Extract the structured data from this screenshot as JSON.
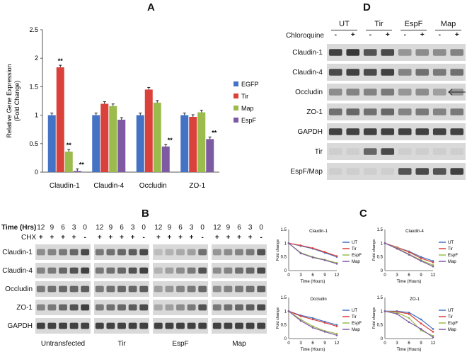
{
  "panel_a": {
    "label": "A",
    "chart_data": {
      "type": "bar",
      "ylabel": "Relative Gene Expression\n(Fold Change)",
      "ylim": [
        0,
        2.5
      ],
      "yticks": [
        "0",
        "0.5",
        "1",
        "1.5",
        "2",
        "2.5"
      ],
      "categories": [
        "Claudin-1",
        "Claudin-4",
        "Occludin",
        "ZO-1"
      ],
      "series": [
        {
          "name": "EGFP",
          "color": "#4472c4",
          "values": [
            1.0,
            1.0,
            1.0,
            1.0
          ]
        },
        {
          "name": "Tir",
          "color": "#d9413a",
          "values": [
            1.84,
            1.2,
            1.45,
            0.97
          ]
        },
        {
          "name": "Map",
          "color": "#9bbb4d",
          "values": [
            0.36,
            1.16,
            1.22,
            1.05
          ]
        },
        {
          "name": "EspF",
          "color": "#7e5aa2",
          "values": [
            0.02,
            0.92,
            0.45,
            0.58
          ]
        }
      ],
      "significance": [
        {
          "category": 0,
          "series": 1,
          "text": "**"
        },
        {
          "category": 0,
          "series": 2,
          "text": "**"
        },
        {
          "category": 0,
          "series": 3,
          "text": "**"
        },
        {
          "category": 2,
          "series": 3,
          "text": "**"
        },
        {
          "category": 3,
          "series": 3,
          "text": "**"
        }
      ]
    }
  },
  "panel_d": {
    "label": "D",
    "groups": [
      "UT",
      "Tir",
      "EspF",
      "Map"
    ],
    "treatment_label": "Chloroquine",
    "treatment_signs": [
      "-",
      "+",
      "-",
      "+",
      "-",
      "+",
      "-",
      "+"
    ],
    "rows": [
      "Claudin-1",
      "Claudin-4",
      "Occludin",
      "ZO-1",
      "GAPDH",
      "Tir",
      "EspF/Map"
    ]
  },
  "panel_b": {
    "label": "B",
    "time_label": "Time (Hrs)",
    "time_values": [
      "12",
      "9",
      "6",
      "3",
      "0"
    ],
    "treatment_label": "CHX",
    "treatment_signs": [
      "+",
      "+",
      "+",
      "+",
      "-"
    ],
    "rows": [
      "Claudin-1",
      "Claudin-4",
      "Occludin",
      "ZO-1",
      "GAPDH"
    ],
    "groups": [
      "Untransfected",
      "Tir",
      "EspF",
      "Map"
    ]
  },
  "panel_c": {
    "label": "C",
    "chart_data": [
      {
        "type": "line",
        "title": "Claudin-1",
        "xlabel": "Time (Hours)",
        "ylabel": "Fold change",
        "x": [
          0,
          3,
          6,
          9,
          12
        ],
        "ylim": [
          0,
          1.5
        ],
        "xticks": [
          "0",
          "3",
          "6",
          "9",
          "12"
        ],
        "yticks": [
          "0",
          "0.5",
          "1",
          "1.5"
        ],
        "series": [
          {
            "name": "UT",
            "color": "#4472c4",
            "values": [
              1.0,
              0.9,
              0.8,
              0.65,
              0.5
            ]
          },
          {
            "name": "Tir",
            "color": "#d9413a",
            "values": [
              1.0,
              0.92,
              0.82,
              0.68,
              0.53
            ]
          },
          {
            "name": "EspF",
            "color": "#9bbb4d",
            "values": [
              1.0,
              0.65,
              0.5,
              0.4,
              0.28
            ]
          },
          {
            "name": "Map",
            "color": "#7e5aa2",
            "values": [
              1.0,
              0.63,
              0.48,
              0.38,
              0.25
            ]
          }
        ]
      },
      {
        "type": "line",
        "title": "Claudin-4",
        "xlabel": "Time (Hours)",
        "ylabel": "Fold change",
        "x": [
          0,
          3,
          6,
          9,
          12
        ],
        "ylim": [
          0,
          1.5
        ],
        "xticks": [
          "0",
          "3",
          "6",
          "9",
          "12"
        ],
        "yticks": [
          "0",
          "0.5",
          "1",
          "1.5"
        ],
        "series": [
          {
            "name": "UT",
            "color": "#4472c4",
            "values": [
              1.0,
              0.85,
              0.7,
              0.5,
              0.35
            ]
          },
          {
            "name": "Tir",
            "color": "#d9413a",
            "values": [
              1.0,
              0.85,
              0.68,
              0.45,
              0.3
            ]
          },
          {
            "name": "EspF",
            "color": "#9bbb4d",
            "values": [
              1.0,
              0.82,
              0.6,
              0.38,
              0.2
            ]
          },
          {
            "name": "Map",
            "color": "#7e5aa2",
            "values": [
              1.0,
              0.8,
              0.58,
              0.35,
              0.15
            ]
          }
        ]
      },
      {
        "type": "line",
        "title": "Occludin",
        "xlabel": "Time (Hours)",
        "ylabel": "Fold change",
        "x": [
          0,
          3,
          6,
          9,
          12
        ],
        "ylim": [
          0,
          1.5
        ],
        "xticks": [
          "0",
          "3",
          "6",
          "9",
          "12"
        ],
        "yticks": [
          "0",
          "0.5",
          "1",
          "1.5"
        ],
        "series": [
          {
            "name": "UT",
            "color": "#4472c4",
            "values": [
              1.0,
              0.85,
              0.75,
              0.62,
              0.5
            ]
          },
          {
            "name": "Tir",
            "color": "#d9413a",
            "values": [
              1.0,
              0.82,
              0.7,
              0.58,
              0.45
            ]
          },
          {
            "name": "EspF",
            "color": "#9bbb4d",
            "values": [
              1.0,
              0.7,
              0.45,
              0.28,
              0.18
            ]
          },
          {
            "name": "Map",
            "color": "#7e5aa2",
            "values": [
              1.0,
              0.65,
              0.4,
              0.25,
              0.12
            ]
          }
        ]
      },
      {
        "type": "line",
        "title": "ZO-1",
        "xlabel": "Time (Hours)",
        "ylabel": "Fold change",
        "x": [
          0,
          3,
          6,
          9,
          12
        ],
        "ylim": [
          0,
          1.5
        ],
        "xticks": [
          "0",
          "3",
          "6",
          "9",
          "12"
        ],
        "yticks": [
          "0",
          "0.5",
          "1",
          "1.5"
        ],
        "series": [
          {
            "name": "UT",
            "color": "#4472c4",
            "values": [
              1.0,
              1.0,
              0.95,
              0.7,
              0.35
            ]
          },
          {
            "name": "Tir",
            "color": "#d9413a",
            "values": [
              1.0,
              0.98,
              0.9,
              0.55,
              0.25
            ]
          },
          {
            "name": "EspF",
            "color": "#9bbb4d",
            "values": [
              1.0,
              0.95,
              0.75,
              0.3,
              0.1
            ]
          },
          {
            "name": "Map",
            "color": "#7e5aa2",
            "values": [
              1.0,
              0.9,
              0.6,
              0.35,
              0.05
            ]
          }
        ]
      }
    ]
  }
}
